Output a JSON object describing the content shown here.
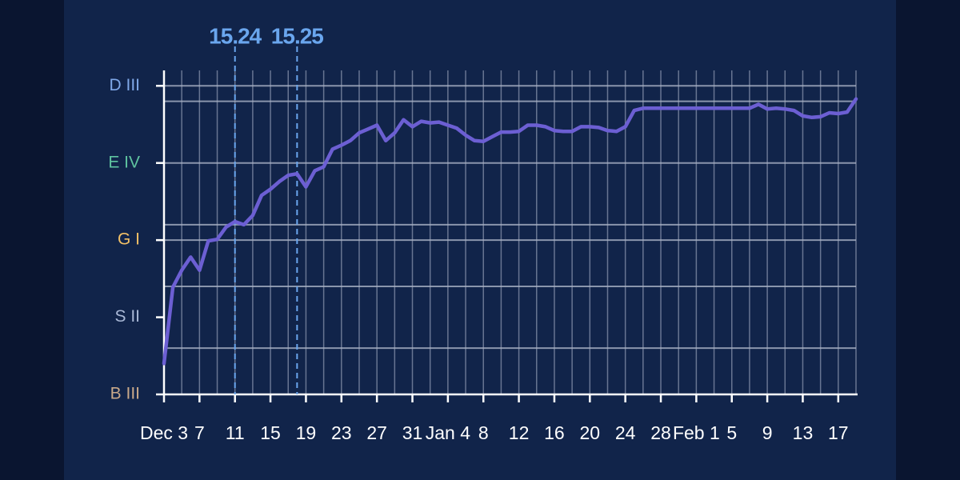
{
  "chart_data": {
    "type": "line",
    "xlim": [
      0,
      78
    ],
    "xticks": [
      {
        "value": 0,
        "label": "Dec 3"
      },
      {
        "value": 4,
        "label": "7"
      },
      {
        "value": 8,
        "label": "11"
      },
      {
        "value": 12,
        "label": "15"
      },
      {
        "value": 16,
        "label": "19"
      },
      {
        "value": 20,
        "label": "23"
      },
      {
        "value": 24,
        "label": "27"
      },
      {
        "value": 28,
        "label": "31"
      },
      {
        "value": 32,
        "label": "Jan 4"
      },
      {
        "value": 36,
        "label": "8"
      },
      {
        "value": 40,
        "label": "12"
      },
      {
        "value": 44,
        "label": "16"
      },
      {
        "value": 48,
        "label": "20"
      },
      {
        "value": 52,
        "label": "24"
      },
      {
        "value": 56,
        "label": "28"
      },
      {
        "value": 60,
        "label": "Feb 1"
      },
      {
        "value": 64,
        "label": "5"
      },
      {
        "value": 68,
        "label": "9"
      },
      {
        "value": 72,
        "label": "13"
      },
      {
        "value": 76,
        "label": "17"
      }
    ],
    "xgrid": [
      2,
      4,
      6,
      8,
      10,
      12,
      14,
      16,
      18,
      20,
      22,
      24,
      26,
      28,
      30,
      32,
      34,
      36,
      38,
      40,
      42,
      44,
      46,
      48,
      50,
      52,
      54,
      56,
      58,
      60,
      62,
      64,
      66,
      68,
      70,
      72,
      74,
      76,
      78
    ],
    "ylim": [
      0,
      4.2
    ],
    "yticks": [
      {
        "value": 0,
        "label": "B III"
      },
      {
        "value": 1,
        "label": "S II"
      },
      {
        "value": 2,
        "label": "G I"
      },
      {
        "value": 3,
        "label": "E IV"
      },
      {
        "value": 4,
        "label": "D III"
      }
    ],
    "ytick_colors": [
      "#c9a98a",
      "#a9b8d6",
      "#f2c066",
      "#5fc3a0",
      "#7fa8e8"
    ],
    "ygrid": [
      0.6,
      1.4,
      2,
      2.2,
      3,
      3.8,
      4
    ],
    "grid": true,
    "annotations": [
      {
        "x": 8,
        "label": "15.24"
      },
      {
        "x": 15,
        "label": "15.25"
      }
    ],
    "annotation_color": "#6aa6ee",
    "series": [
      {
        "color": "#6c5fd3",
        "x": [
          0,
          1,
          2,
          3,
          4,
          5,
          6,
          7,
          8,
          9,
          10,
          11,
          12,
          13,
          14,
          15,
          16,
          17,
          18,
          19,
          20,
          21,
          22,
          23,
          24,
          25,
          26,
          27,
          28,
          29,
          30,
          31,
          32,
          33,
          34,
          35,
          36,
          37,
          38,
          39,
          40,
          41,
          42,
          43,
          44,
          45,
          46,
          47,
          48,
          49,
          50,
          51,
          52,
          53,
          54,
          55,
          56,
          57,
          58,
          59,
          60,
          61,
          62,
          63,
          64,
          65,
          66,
          67,
          68,
          69,
          70,
          71,
          72,
          73,
          74,
          75,
          76,
          77,
          78
        ],
        "values": [
          0.4,
          1.39,
          1.61,
          1.78,
          1.61,
          1.99,
          2.01,
          2.17,
          2.24,
          2.2,
          2.32,
          2.58,
          2.66,
          2.76,
          2.84,
          2.86,
          2.69,
          2.9,
          2.95,
          3.18,
          3.23,
          3.29,
          3.39,
          3.44,
          3.49,
          3.29,
          3.39,
          3.56,
          3.47,
          3.54,
          3.52,
          3.53,
          3.49,
          3.45,
          3.36,
          3.29,
          3.28,
          3.34,
          3.4,
          3.4,
          3.41,
          3.49,
          3.49,
          3.47,
          3.42,
          3.41,
          3.41,
          3.47,
          3.47,
          3.46,
          3.42,
          3.41,
          3.47,
          3.68,
          3.71,
          3.71,
          3.71,
          3.71,
          3.71,
          3.71,
          3.71,
          3.71,
          3.71,
          3.71,
          3.71,
          3.71,
          3.71,
          3.76,
          3.7,
          3.71,
          3.7,
          3.68,
          3.61,
          3.59,
          3.6,
          3.65,
          3.64,
          3.66,
          3.83
        ]
      }
    ]
  }
}
